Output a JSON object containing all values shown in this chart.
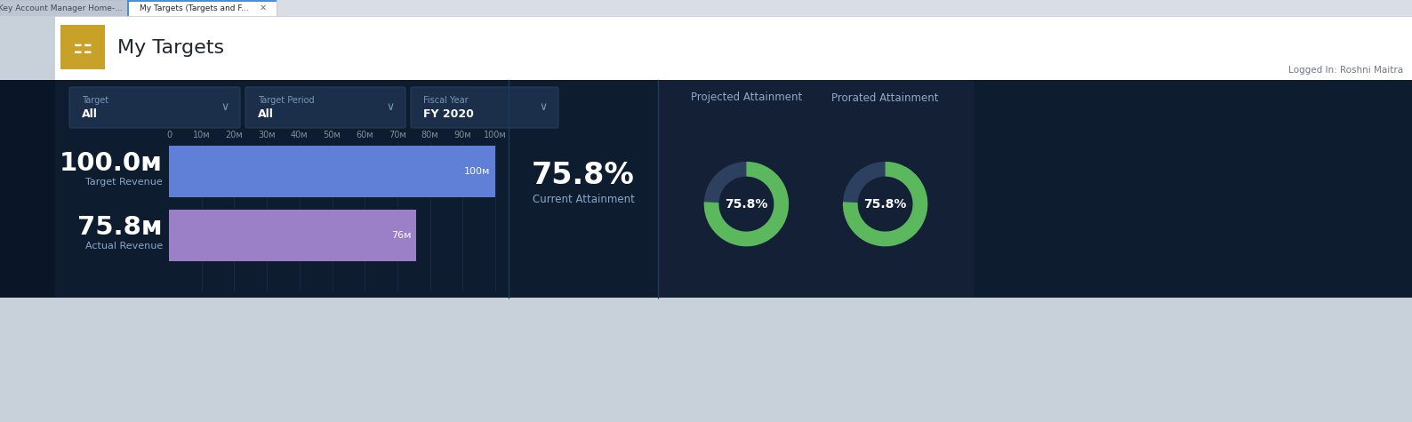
{
  "bg_color": "#0e1c2f",
  "tab_bar_bg": "#d8dde6",
  "tab_inactive_bg": "#bcc5d1",
  "tab_inactive_text": "Key Account Manager Home-...",
  "tab_active_text": "My Targets (Targets and F...",
  "header_bg": "#ffffff",
  "header_title": "My Targets",
  "header_icon_bg": "#c8a228",
  "logged_in_text": "Logged In: Roshni Maitra",
  "filter_bg": "#1a2d4a",
  "filters": [
    {
      "label": "Target",
      "value": "All"
    },
    {
      "label": "Target Period",
      "value": "All"
    },
    {
      "label": "Fiscal Year",
      "value": "FY 2020"
    }
  ],
  "axis_ticks": [
    "0",
    "10м",
    "20м",
    "30м",
    "40м",
    "50м",
    "60м",
    "70м",
    "80м",
    "90м",
    "100м"
  ],
  "bar_target_value": 100.0,
  "bar_actual_value": 75.8,
  "bar_target_label": "100м",
  "bar_actual_label": "76м",
  "bar_target_color": "#6080d8",
  "bar_actual_color": "#9b7fc7",
  "bar_target_display": "100.0м",
  "bar_actual_display": "75.8м",
  "bar_target_sublabel": "Target Revenue",
  "bar_actual_sublabel": "Actual Revenue",
  "current_attainment_pct": "75.8%",
  "current_attainment_label": "Current Attainment",
  "projected_attainment_label": "Projected Attainment",
  "prorated_attainment_label": "Prorated Attainment",
  "donut_pct_text": "75.8%",
  "donut_bg_color": "#2e4060",
  "donut_fill_color": "#5cb85c",
  "donut_panel_bg": "#132035",
  "separator_color": "#1e3a5a",
  "attainment_pct_numeric": 75.8,
  "left_panel_text_color": "#ffffff",
  "sublabel_color": "#8aa8c8",
  "tick_color": "#8090a0",
  "gridline_color": "#1e3050"
}
